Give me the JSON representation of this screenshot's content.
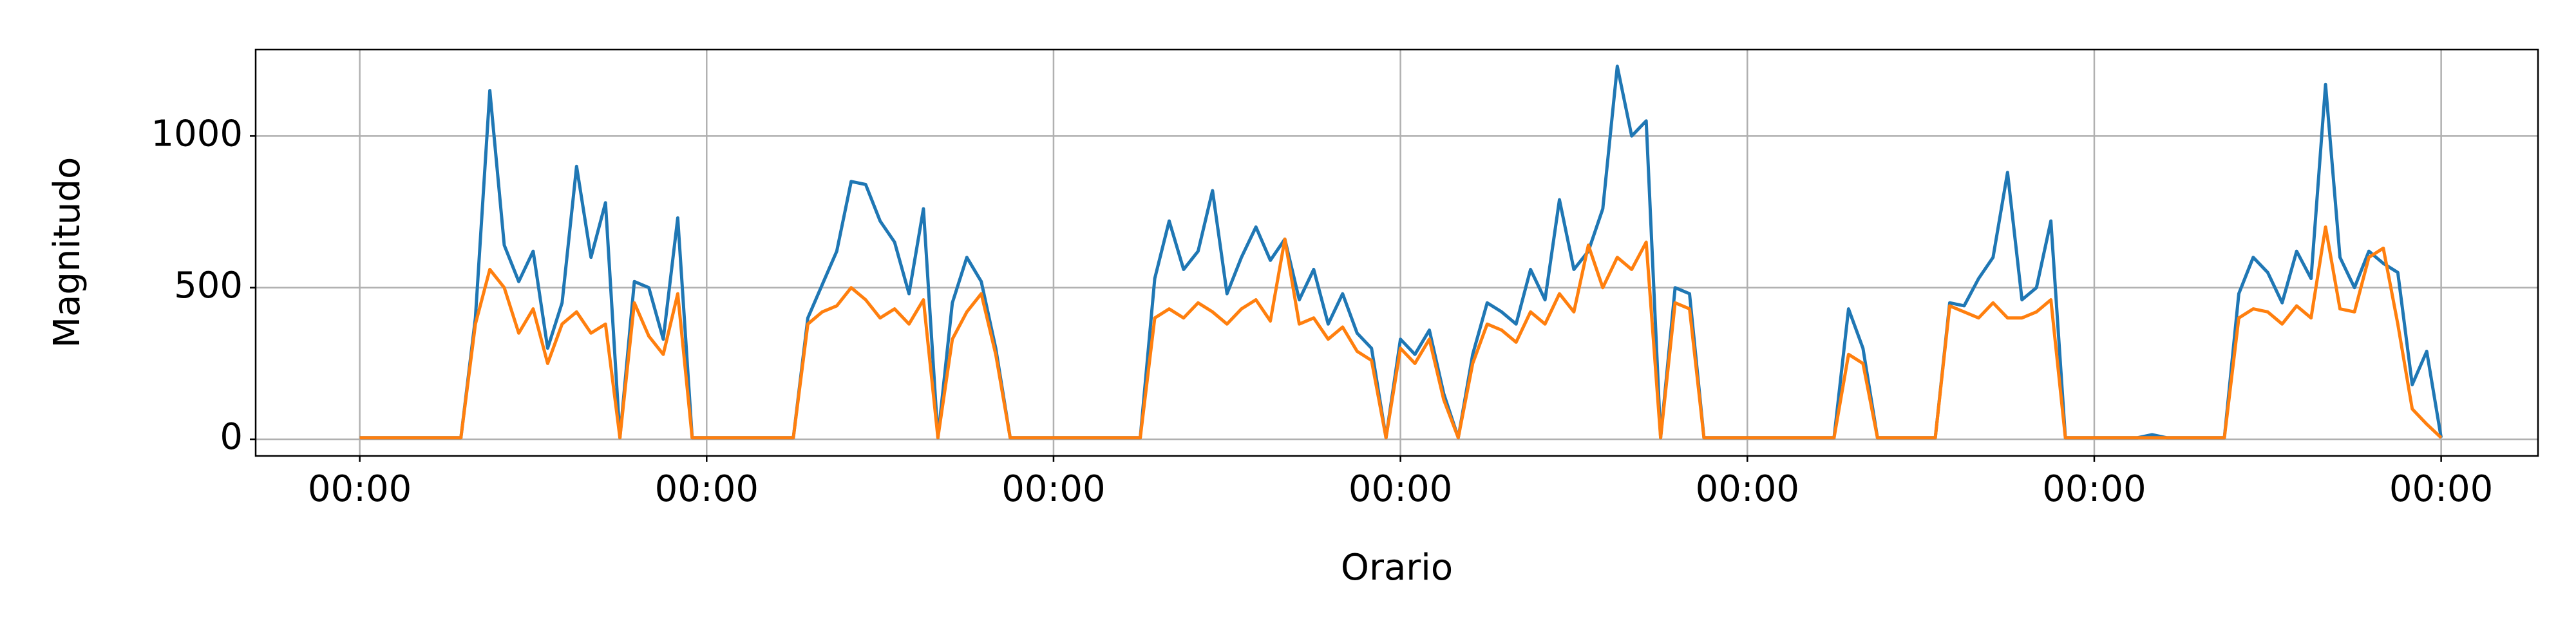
{
  "chart_data": {
    "type": "line",
    "xlabel": "Orario",
    "ylabel": "Magnitudo",
    "grid": true,
    "xlim": [
      -7.2,
      150.7
    ],
    "ylim": [
      -55,
      1285
    ],
    "xticks": [
      {
        "value": 0,
        "label": "00:00"
      },
      {
        "value": 24,
        "label": "00:00"
      },
      {
        "value": 48,
        "label": "00:00"
      },
      {
        "value": 72,
        "label": "00:00"
      },
      {
        "value": 96,
        "label": "00:00"
      },
      {
        "value": 120,
        "label": "00:00"
      },
      {
        "value": 144,
        "label": "00:00"
      }
    ],
    "yticks": [
      0,
      500,
      1000
    ],
    "x": [
      0,
      1,
      2,
      3,
      4,
      5,
      6,
      7,
      8,
      9,
      10,
      11,
      12,
      13,
      14,
      15,
      16,
      17,
      18,
      19,
      20,
      21,
      22,
      23,
      24,
      25,
      26,
      27,
      28,
      29,
      30,
      31,
      32,
      33,
      34,
      35,
      36,
      37,
      38,
      39,
      40,
      41,
      42,
      43,
      44,
      45,
      46,
      47,
      48,
      49,
      50,
      51,
      52,
      53,
      54,
      55,
      56,
      57,
      58,
      59,
      60,
      61,
      62,
      63,
      64,
      65,
      66,
      67,
      68,
      69,
      70,
      71,
      72,
      73,
      74,
      75,
      76,
      77,
      78,
      79,
      80,
      81,
      82,
      83,
      84,
      85,
      86,
      87,
      88,
      89,
      90,
      91,
      92,
      93,
      94,
      95,
      96,
      97,
      98,
      99,
      100,
      101,
      102,
      103,
      104,
      105,
      106,
      107,
      108,
      109,
      110,
      111,
      112,
      113,
      114,
      115,
      116,
      117,
      118,
      119,
      120,
      121,
      122,
      123,
      124,
      125,
      126,
      127,
      128,
      129,
      130,
      131,
      132,
      133,
      134,
      135,
      136,
      137,
      138,
      139,
      140,
      141,
      142,
      143,
      144
    ],
    "series": [
      {
        "color": "#1f77b4",
        "values": [
          5,
          5,
          5,
          5,
          5,
          5,
          5,
          5,
          400,
          1150,
          640,
          520,
          620,
          300,
          450,
          900,
          600,
          780,
          5,
          520,
          500,
          330,
          730,
          5,
          5,
          5,
          5,
          5,
          5,
          5,
          5,
          400,
          510,
          620,
          850,
          840,
          720,
          650,
          480,
          760,
          5,
          450,
          600,
          520,
          300,
          5,
          5,
          5,
          5,
          5,
          5,
          5,
          5,
          5,
          5,
          530,
          720,
          560,
          620,
          820,
          480,
          600,
          700,
          590,
          660,
          460,
          560,
          380,
          480,
          350,
          300,
          5,
          330,
          280,
          360,
          150,
          5,
          280,
          450,
          420,
          380,
          560,
          460,
          790,
          560,
          620,
          760,
          1230,
          1000,
          1050,
          5,
          500,
          480,
          5,
          5,
          5,
          5,
          5,
          5,
          5,
          5,
          5,
          5,
          430,
          300,
          5,
          5,
          5,
          5,
          5,
          450,
          440,
          530,
          600,
          880,
          460,
          500,
          720,
          5,
          5,
          5,
          5,
          5,
          5,
          15,
          5,
          5,
          5,
          5,
          5,
          480,
          600,
          550,
          450,
          620,
          530,
          1170,
          600,
          500,
          620,
          580,
          550,
          180,
          290,
          5
        ]
      },
      {
        "color": "#ff7f0e",
        "values": [
          5,
          5,
          5,
          5,
          5,
          5,
          5,
          5,
          380,
          560,
          500,
          350,
          430,
          250,
          380,
          420,
          350,
          380,
          5,
          450,
          340,
          280,
          480,
          5,
          5,
          5,
          5,
          5,
          5,
          5,
          5,
          380,
          420,
          440,
          500,
          460,
          400,
          430,
          380,
          460,
          5,
          330,
          420,
          480,
          280,
          5,
          5,
          5,
          5,
          5,
          5,
          5,
          5,
          5,
          5,
          400,
          430,
          400,
          450,
          420,
          380,
          430,
          460,
          390,
          660,
          380,
          400,
          330,
          370,
          290,
          260,
          5,
          300,
          250,
          330,
          130,
          5,
          250,
          380,
          360,
          320,
          420,
          380,
          480,
          420,
          640,
          500,
          600,
          560,
          650,
          5,
          450,
          430,
          5,
          5,
          5,
          5,
          5,
          5,
          5,
          5,
          5,
          5,
          280,
          250,
          5,
          5,
          5,
          5,
          5,
          440,
          420,
          400,
          450,
          400,
          400,
          420,
          460,
          5,
          5,
          5,
          5,
          5,
          5,
          5,
          5,
          5,
          5,
          5,
          5,
          400,
          430,
          420,
          380,
          440,
          400,
          700,
          430,
          420,
          600,
          630,
          380,
          100,
          50,
          5
        ]
      }
    ]
  }
}
